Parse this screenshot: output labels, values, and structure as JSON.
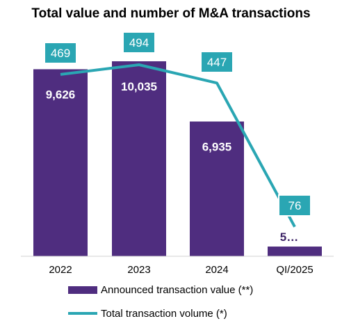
{
  "chart_data": {
    "type": "bar",
    "title": "Total value and number of M&A transactions",
    "categories": [
      "2022",
      "2023",
      "2024",
      "QI/2025"
    ],
    "series": [
      {
        "name": "Announced transaction value (**)",
        "type": "bar",
        "values": [
          9626,
          10035,
          6935,
          500
        ],
        "labels": [
          "9,626",
          "10,035",
          "6,935",
          "5…"
        ],
        "color": "#4f2d7f"
      },
      {
        "name": "Total transaction volume (*)",
        "type": "line",
        "values": [
          469,
          494,
          447,
          76
        ],
        "labels": [
          "469",
          "494",
          "447",
          "76"
        ],
        "color": "#2aa6b3"
      }
    ],
    "legend_position": "bottom",
    "grid": false,
    "xlabel": "",
    "ylabel": ""
  }
}
